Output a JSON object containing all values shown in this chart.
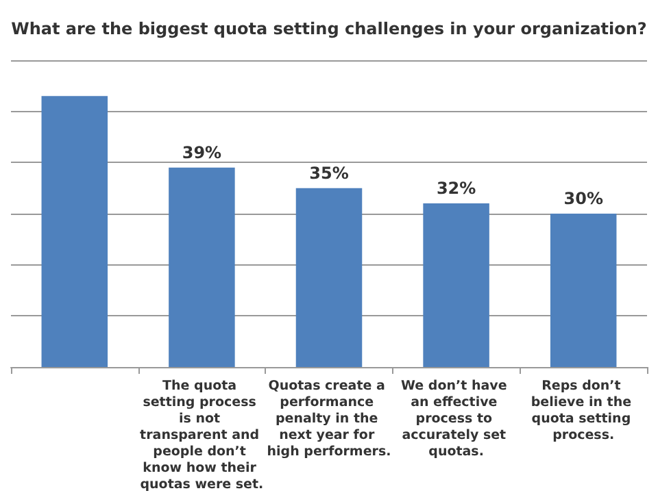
{
  "chart_data": {
    "type": "bar",
    "title": "What are the biggest quota setting challenges in your organization?",
    "categories": [
      null,
      "The quota setting process is not transparent and people don’t know how their quotas were set.",
      "Quotas create a performance penalty in the next year for high performers.",
      "We don’t have an effective process to accurately set quotas.",
      "Reps don’t believe in the quota setting process."
    ],
    "values": [
      53,
      39,
      35,
      32,
      30
    ],
    "value_labels": [
      null,
      "39%",
      "35%",
      "32%",
      "30%"
    ],
    "color": "#4f81bd",
    "ylim": [
      0,
      60
    ],
    "yticks": [
      {
        "value": 0,
        "label": null
      },
      {
        "value": 10,
        "label": null
      },
      {
        "value": 20,
        "label": null
      },
      {
        "value": 30,
        "label": null
      },
      {
        "value": 40,
        "label": null
      },
      {
        "value": 50,
        "label": null
      },
      {
        "value": 60,
        "label": null
      }
    ],
    "grid": "y",
    "tick_labels": "x"
  }
}
